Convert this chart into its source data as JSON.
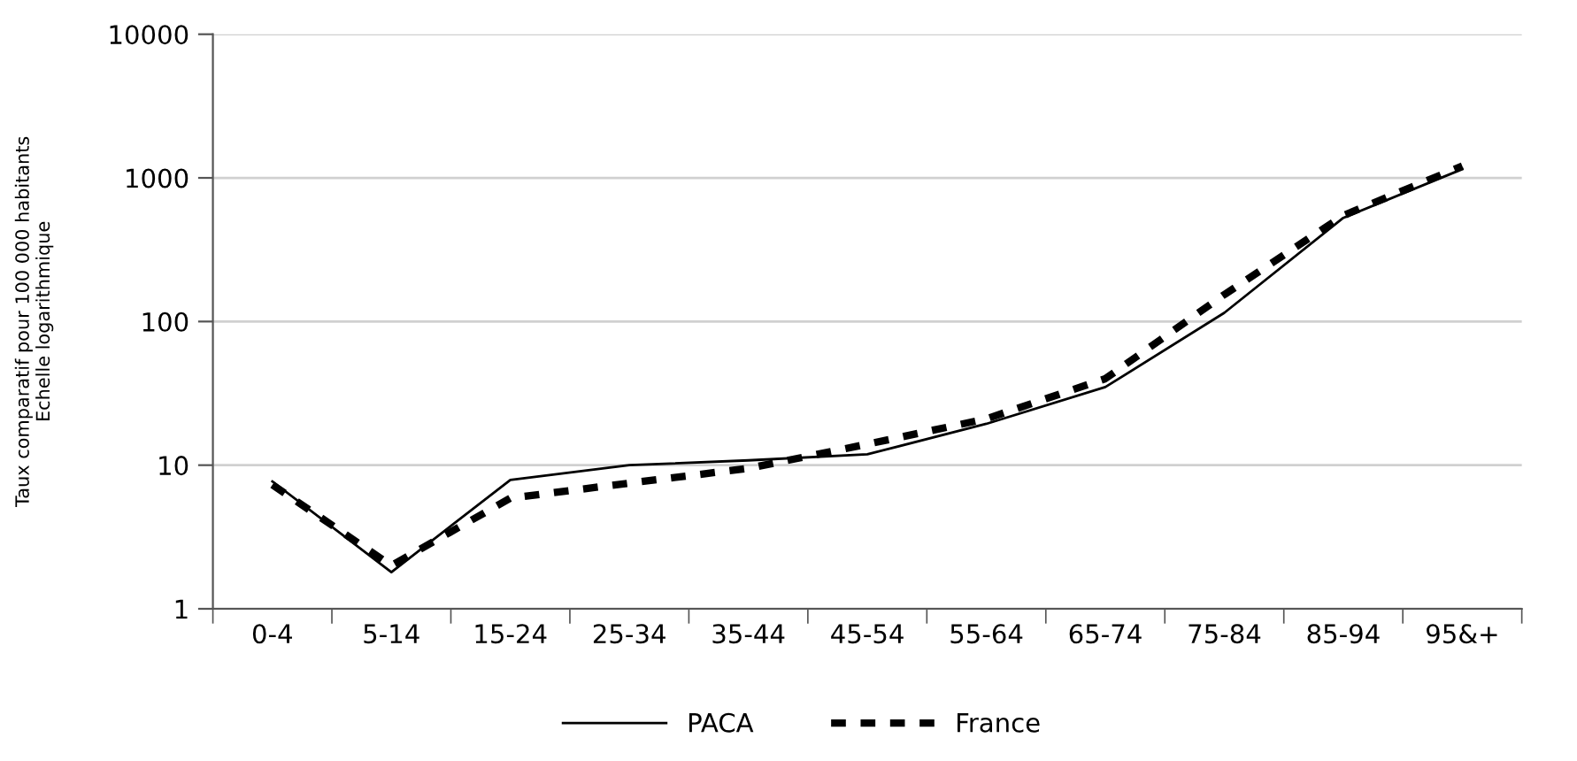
{
  "chart_data": {
    "type": "line",
    "ylabel": "Taux comparatif pour 100 000 habitants\nEchelle logarithmique",
    "categories": [
      "0-4",
      "5-14",
      "15-24",
      "25-34",
      "35-44",
      "45-54",
      "55-64",
      "65-74",
      "75-84",
      "85-94",
      "95&+"
    ],
    "series": [
      {
        "name": "PACA",
        "color": "#000000",
        "line_style": "solid",
        "values": [
          7.7,
          1.8,
          7.9,
          10,
          10.8,
          11.9,
          19.4,
          35,
          115,
          527,
          1150
        ]
      },
      {
        "name": "France",
        "color": "#000000",
        "line_style": "dashed",
        "values": [
          7.3,
          2.0,
          5.9,
          7.5,
          9.5,
          14,
          21,
          40,
          154,
          547,
          1210
        ]
      }
    ],
    "log": "y",
    "ylim": [
      1,
      10000
    ],
    "yticks": [
      1,
      10,
      100,
      1000,
      10000
    ],
    "grid": "y",
    "legend": "bottom"
  }
}
